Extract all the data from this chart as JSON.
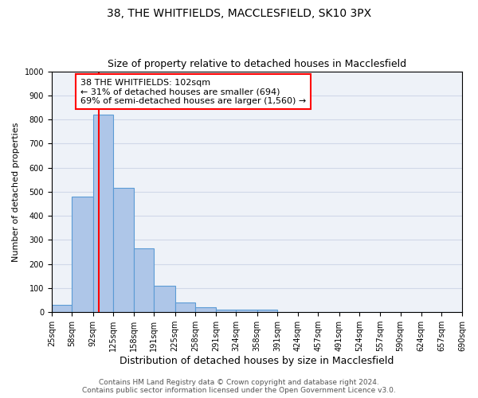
{
  "title": "38, THE WHITFIELDS, MACCLESFIELD, SK10 3PX",
  "subtitle": "Size of property relative to detached houses in Macclesfield",
  "xlabel": "Distribution of detached houses by size in Macclesfield",
  "ylabel": "Number of detached properties",
  "bin_edges": [
    25,
    58,
    92,
    125,
    158,
    191,
    225,
    258,
    291,
    324,
    358,
    391,
    424,
    457,
    491,
    524,
    557,
    590,
    624,
    657,
    690
  ],
  "bar_heights": [
    30,
    480,
    820,
    515,
    265,
    110,
    40,
    20,
    12,
    10,
    10,
    0,
    0,
    0,
    0,
    0,
    0,
    0,
    0,
    0
  ],
  "bar_color": "#aec6e8",
  "bar_edgecolor": "#5b9bd5",
  "bar_linewidth": 0.8,
  "vline_x": 102,
  "vline_color": "red",
  "vline_linewidth": 1.5,
  "annotation_text": "38 THE WHITFIELDS: 102sqm\n← 31% of detached houses are smaller (694)\n69% of semi-detached houses are larger (1,560) →",
  "annotation_box_color": "white",
  "annotation_box_edgecolor": "red",
  "ylim": [
    0,
    1000
  ],
  "yticks": [
    0,
    100,
    200,
    300,
    400,
    500,
    600,
    700,
    800,
    900,
    1000
  ],
  "xtick_labels": [
    "25sqm",
    "58sqm",
    "92sqm",
    "125sqm",
    "158sqm",
    "191sqm",
    "225sqm",
    "258sqm",
    "291sqm",
    "324sqm",
    "358sqm",
    "391sqm",
    "424sqm",
    "457sqm",
    "491sqm",
    "524sqm",
    "557sqm",
    "590sqm",
    "624sqm",
    "657sqm",
    "690sqm"
  ],
  "grid_color": "#d0d8e8",
  "background_color": "#eef2f8",
  "footer_line1": "Contains HM Land Registry data © Crown copyright and database right 2024.",
  "footer_line2": "Contains public sector information licensed under the Open Government Licence v3.0.",
  "title_fontsize": 10,
  "subtitle_fontsize": 9,
  "xlabel_fontsize": 9,
  "ylabel_fontsize": 8,
  "tick_fontsize": 7,
  "footer_fontsize": 6.5,
  "annotation_fontsize": 8
}
